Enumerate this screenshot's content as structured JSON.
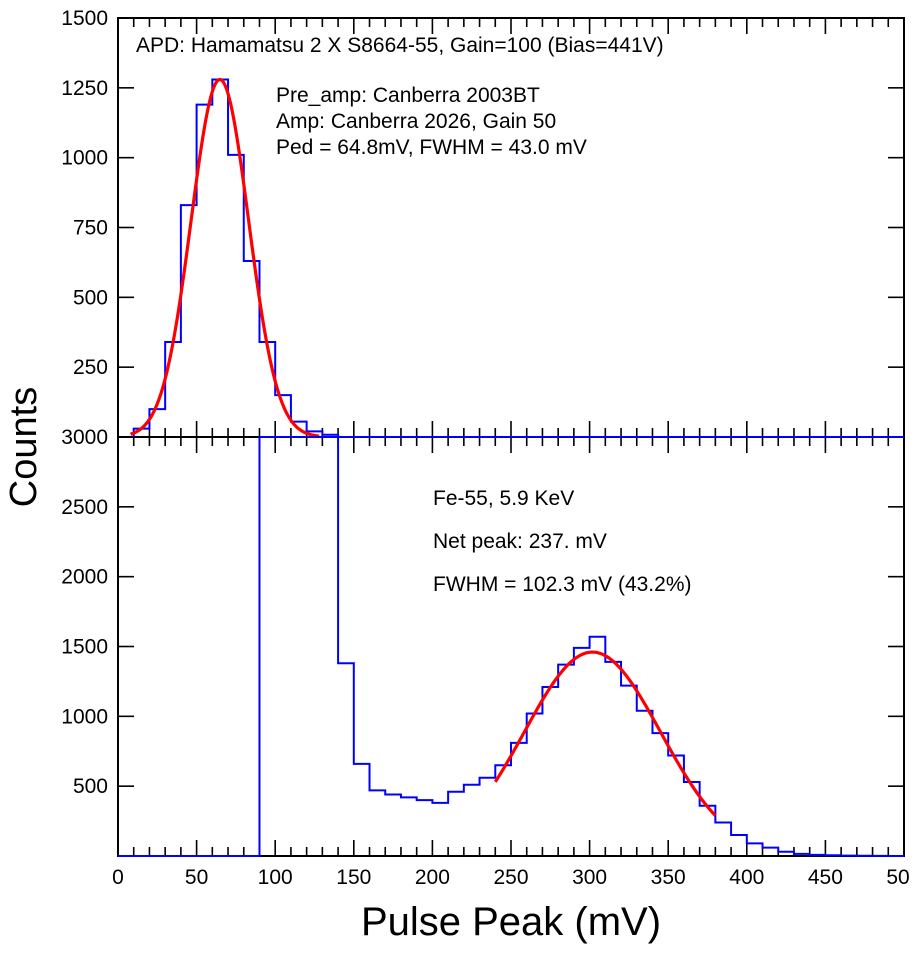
{
  "chart_data": [
    {
      "type": "histogram",
      "panel": "top",
      "title": "APD: Hamamatsu 2 X S8664-55, Gain=100 (Bias=441V)",
      "annotations": [
        "Pre_amp: Canberra 2003BT",
        "Amp: Canberra 2026, Gain 50",
        "Ped = 64.8mV, FWHM = 43.0 mV"
      ],
      "xlim": [
        0,
        500
      ],
      "ylim": [
        0,
        1500
      ],
      "y_ticks": [
        "1500",
        "1250",
        "1000",
        "750",
        "500",
        "250"
      ],
      "bin_width": 10,
      "histogram": {
        "bin_edges": [
          10,
          20,
          30,
          40,
          50,
          60,
          70,
          80,
          90,
          100,
          110,
          120,
          130,
          140,
          150
        ],
        "counts": [
          30,
          100,
          340,
          830,
          1190,
          1280,
          1010,
          630,
          340,
          150,
          55,
          20,
          8,
          0
        ],
        "color": "#0000ff"
      },
      "fit": {
        "type": "gaussian",
        "peak": 64.8,
        "fwhm": 43.0,
        "amplitude": 1280,
        "x_range": [
          8,
          128
        ],
        "color": "#ff0000"
      }
    },
    {
      "type": "histogram",
      "panel": "bottom",
      "annotations": [
        "Fe-55, 5.9 KeV",
        "Net peak: 237. mV",
        "FWHM = 102.3 mV (43.2%)"
      ],
      "xlim": [
        0,
        500
      ],
      "ylim": [
        0,
        3000
      ],
      "y_ticks": [
        "3000",
        "2500",
        "2000",
        "1500",
        "1000",
        "500"
      ],
      "x_ticks": [
        "0",
        "50",
        "100",
        "150",
        "200",
        "250",
        "300",
        "350",
        "400",
        "450",
        "50"
      ],
      "bin_width": 10,
      "histogram": {
        "bin_edges": [
          0,
          90,
          140,
          150,
          160,
          170,
          180,
          190,
          200,
          210,
          220,
          230,
          240,
          250,
          260,
          270,
          280,
          290,
          300,
          310,
          320,
          330,
          340,
          350,
          360,
          370,
          380,
          390,
          400,
          410,
          420,
          430,
          440,
          450,
          460,
          470,
          480,
          490,
          500
        ],
        "counts": [
          0,
          3000,
          1380,
          660,
          470,
          440,
          420,
          400,
          380,
          460,
          510,
          560,
          650,
          810,
          1020,
          1210,
          1370,
          1490,
          1570,
          1390,
          1220,
          1040,
          880,
          720,
          530,
          360,
          240,
          150,
          90,
          60,
          30,
          15,
          8,
          5,
          3,
          2,
          1,
          0
        ],
        "color": "#0000ff"
      },
      "fit": {
        "type": "gaussian",
        "peak": 301.8,
        "fwhm": 102.3,
        "amplitude": 1460,
        "x_range": [
          240,
          380
        ],
        "color": "#ff0000"
      }
    }
  ],
  "ylabel": "Counts",
  "xlabel": "Pulse Peak (mV)"
}
